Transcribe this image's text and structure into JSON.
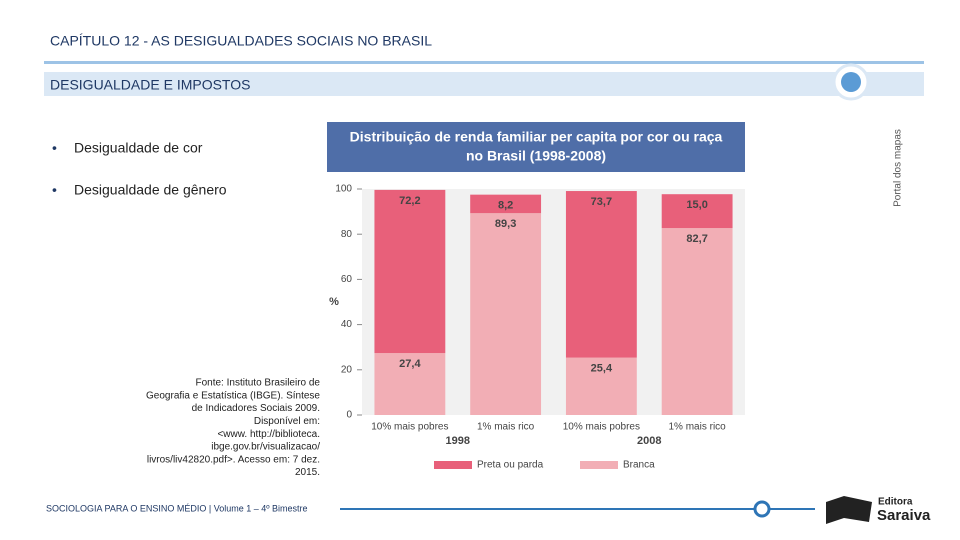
{
  "header": {
    "chapter": "CAPÍTULO 12 - AS DESIGUALDADES SOCIAIS NO BRASIL",
    "section": "DESIGUALDADE E IMPOSTOS"
  },
  "bullets": [
    "Desigualdade de cor",
    "Desigualdade de gênero"
  ],
  "source": [
    "Fonte: Instituto Brasileiro de",
    "Geografia e Estatística (IBGE). Síntese",
    "de Indicadores Sociais 2009.",
    "Disponível em:",
    "<www. http://biblioteca.",
    "ibge.gov.br/visualizacao/",
    "livros/liv42820.pdf>. Acesso em: 7 dez.",
    "2015."
  ],
  "credit": "Portal dos mapas",
  "footer": "SOCIOLOGIA PARA O ENSINO MÉDIO | Volume 1 – 4º Bimestre",
  "logo": [
    "Editora",
    "Saraiva"
  ],
  "chart_data": {
    "type": "stacked_bar",
    "title": [
      "Distribuição de renda familiar per capita por cor ou raça",
      "no Brasil (1998-2008)"
    ],
    "ylabel": "%",
    "categories": [
      "10% mais pobres",
      "1% mais rico",
      "10% mais pobres",
      "1% mais rico"
    ],
    "groups": [
      "1998",
      "2008"
    ],
    "series": [
      {
        "name": "Preta ou parda",
        "color": "#e8607a",
        "values": [
          72.2,
          8.2,
          73.7,
          15.0
        ],
        "value_labels": [
          "72,2",
          "8,2",
          "73,7",
          "15,0"
        ]
      },
      {
        "name": "Branca",
        "color": "#f2aeb5",
        "values": [
          27.4,
          89.3,
          25.4,
          82.7
        ],
        "value_labels": [
          "27,4",
          "89,3",
          "25,4",
          "82,7"
        ]
      }
    ],
    "ylim": [
      0,
      100
    ],
    "yticks": [
      0,
      20,
      40,
      60,
      80,
      100
    ],
    "grid": false
  }
}
